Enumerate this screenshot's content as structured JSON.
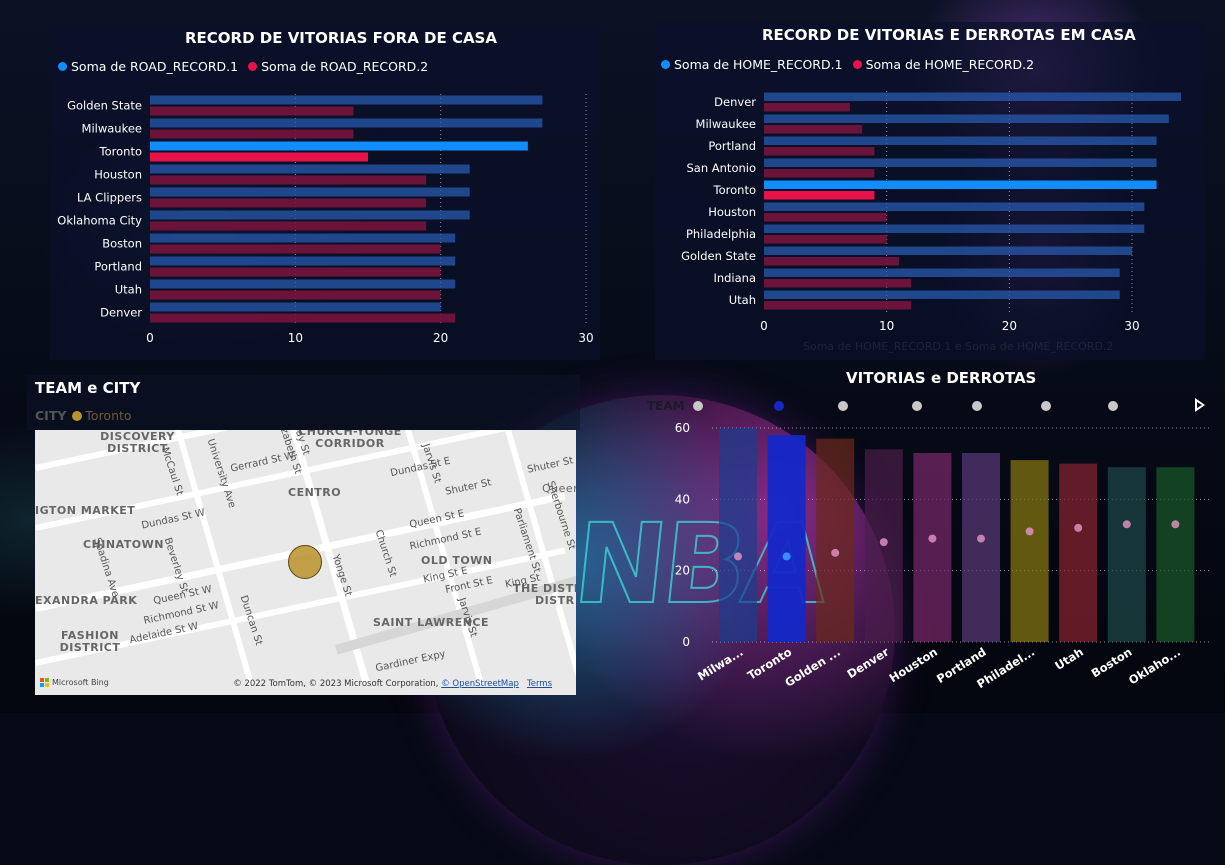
{
  "road_chart": {
    "title": "RECORD DE VITORIAS FORA DE CASA",
    "legend": [
      {
        "label": "Soma de ROAD_RECORD.1",
        "color": "#118dff"
      },
      {
        "label": "Soma de ROAD_RECORD.2",
        "color": "#e8124a"
      }
    ],
    "axis_ticks": [
      "0",
      "10",
      "20",
      "30"
    ]
  },
  "home_chart": {
    "title": "RECORD DE VITORIAS E DERROTAS EM CASA",
    "legend": [
      {
        "label": "Soma de HOME_RECORD.1",
        "color": "#118dff"
      },
      {
        "label": "Soma de HOME_RECORD.2",
        "color": "#e8124a"
      }
    ],
    "axis_ticks": [
      "0",
      "10",
      "20",
      "30"
    ],
    "axis_title": "Soma de HOME_RECORD.1 e Soma de HOME_RECORD.2"
  },
  "map_panel": {
    "title": "TEAM e CITY",
    "legend_field": "CITY",
    "legend_item": "Toronto",
    "legend_color": "#b8922a",
    "areas": [
      "DISCOVERY DISTRICT",
      "CHURCH-YONGE CORRIDOR",
      "CENTRO",
      "IGTON MARKET",
      "CHINATOWN",
      "OLD TOWN",
      "EXANDRA PARK",
      "THE DISTI",
      "DISTR",
      "SAINT LAWRENCE",
      "FASHION DISTRICT",
      "Queen"
    ],
    "streets": [
      "Gerrard St W",
      "Dundas St W",
      "Queen St W",
      "Richmond St W",
      "Adelaide St W",
      "Queen St E",
      "Richmond St E",
      "King St E",
      "Front St E",
      "Shuter St",
      "Shuter St",
      "Yonge St",
      "Church St",
      "Jarvis St",
      "Parliament St",
      "University Ave",
      "McCaul St",
      "Bay St",
      "Elizabeth St",
      "Beverley St",
      "Spadina Ave",
      "Gardiner Expy",
      "Dundas St E",
      "King St",
      "Sherbourne St",
      "Jarvis St",
      "Duncan St"
    ],
    "copyright": "© 2022 TomTom, © 2023 Microsoft Corporation,",
    "osm_link": "© OpenStreetMap",
    "terms_link": "Terms",
    "logo_text": "Microsoft Bing"
  },
  "wins_chart": {
    "title": "VITORIAS e DERROTAS",
    "legend_field": "TEAM",
    "axis_ticks": [
      "0",
      "20",
      "40",
      "60"
    ]
  },
  "chart_data": [
    {
      "type": "bar",
      "orientation": "horizontal",
      "title": "RECORD DE VITORIAS FORA DE CASA",
      "categories": [
        "Golden State",
        "Milwaukee",
        "Toronto",
        "Houston",
        "LA Clippers",
        "Oklahoma City",
        "Boston",
        "Portland",
        "Utah",
        "Denver"
      ],
      "series": [
        {
          "name": "Soma de ROAD_RECORD.1",
          "values": [
            27,
            27,
            26,
            22,
            22,
            22,
            21,
            21,
            21,
            20
          ]
        },
        {
          "name": "Soma de ROAD_RECORD.2",
          "values": [
            14,
            14,
            15,
            19,
            19,
            19,
            20,
            20,
            20,
            21
          ]
        }
      ],
      "highlight": "Toronto",
      "xlim": [
        0,
        30
      ],
      "grid": true,
      "legend": "top-left"
    },
    {
      "type": "bar",
      "orientation": "horizontal",
      "title": "RECORD DE VITORIAS E DERROTAS EM CASA",
      "categories": [
        "Denver",
        "Milwaukee",
        "Portland",
        "San Antonio",
        "Toronto",
        "Houston",
        "Philadelphia",
        "Golden State",
        "Indiana",
        "Utah"
      ],
      "series": [
        {
          "name": "Soma de HOME_RECORD.1",
          "values": [
            34,
            33,
            32,
            32,
            32,
            31,
            31,
            30,
            29,
            29
          ]
        },
        {
          "name": "Soma de HOME_RECORD.2",
          "values": [
            7,
            8,
            9,
            9,
            9,
            10,
            10,
            11,
            12,
            12
          ]
        }
      ],
      "highlight": "Toronto",
      "xlim": [
        0,
        35
      ],
      "xlabel": "Soma de HOME_RECORD.1 e Soma de HOME_RECORD.2",
      "grid": true,
      "legend": "top-left"
    },
    {
      "type": "bar",
      "title": "VITORIAS e DERROTAS",
      "categories": [
        "Milwa...",
        "Toronto",
        "Golden ...",
        "Denver",
        "Houston",
        "Portland",
        "Philadel...",
        "Utah",
        "Boston",
        "Oklaho..."
      ],
      "values": [
        60,
        58,
        57,
        54,
        53,
        53,
        51,
        50,
        49,
        49
      ],
      "markers": [
        24,
        24,
        25,
        28,
        29,
        29,
        31,
        32,
        33,
        33
      ],
      "colors": [
        "#1a3d8f",
        "#1428c8",
        "#6b2a1a",
        "#4a1e4a",
        "#7a2a6a",
        "#5a3a7a",
        "#8a7a10",
        "#8a2430",
        "#1e4a4a",
        "#1a5a2a"
      ],
      "highlight": "Toronto",
      "ylim": [
        0,
        60
      ],
      "legend_field": "TEAM",
      "grid": true
    }
  ]
}
